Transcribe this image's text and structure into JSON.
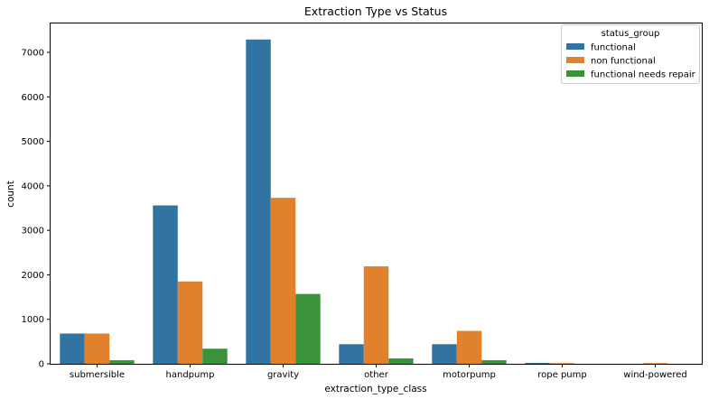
{
  "chart_data": {
    "type": "bar",
    "title": "Extraction Type vs Status",
    "xlabel": "extraction_type_class",
    "ylabel": "count",
    "ylim": [
      0,
      7650
    ],
    "yticks": [
      0,
      1000,
      2000,
      3000,
      4000,
      5000,
      6000,
      7000
    ],
    "grid": false,
    "legend": {
      "title": "status_group",
      "placement": "top-right"
    },
    "categories": [
      "submersible",
      "handpump",
      "gravity",
      "other",
      "motorpump",
      "rope pump",
      "wind-powered"
    ],
    "series": [
      {
        "name": "functional",
        "color": "#3274a1",
        "values": [
          680,
          3560,
          7290,
          440,
          440,
          20,
          0
        ]
      },
      {
        "name": "non functional",
        "color": "#e1812c",
        "values": [
          680,
          1850,
          3730,
          2190,
          740,
          15,
          15
        ]
      },
      {
        "name": "functional needs repair",
        "color": "#3a923a",
        "values": [
          80,
          340,
          1570,
          120,
          80,
          0,
          0
        ]
      }
    ]
  }
}
